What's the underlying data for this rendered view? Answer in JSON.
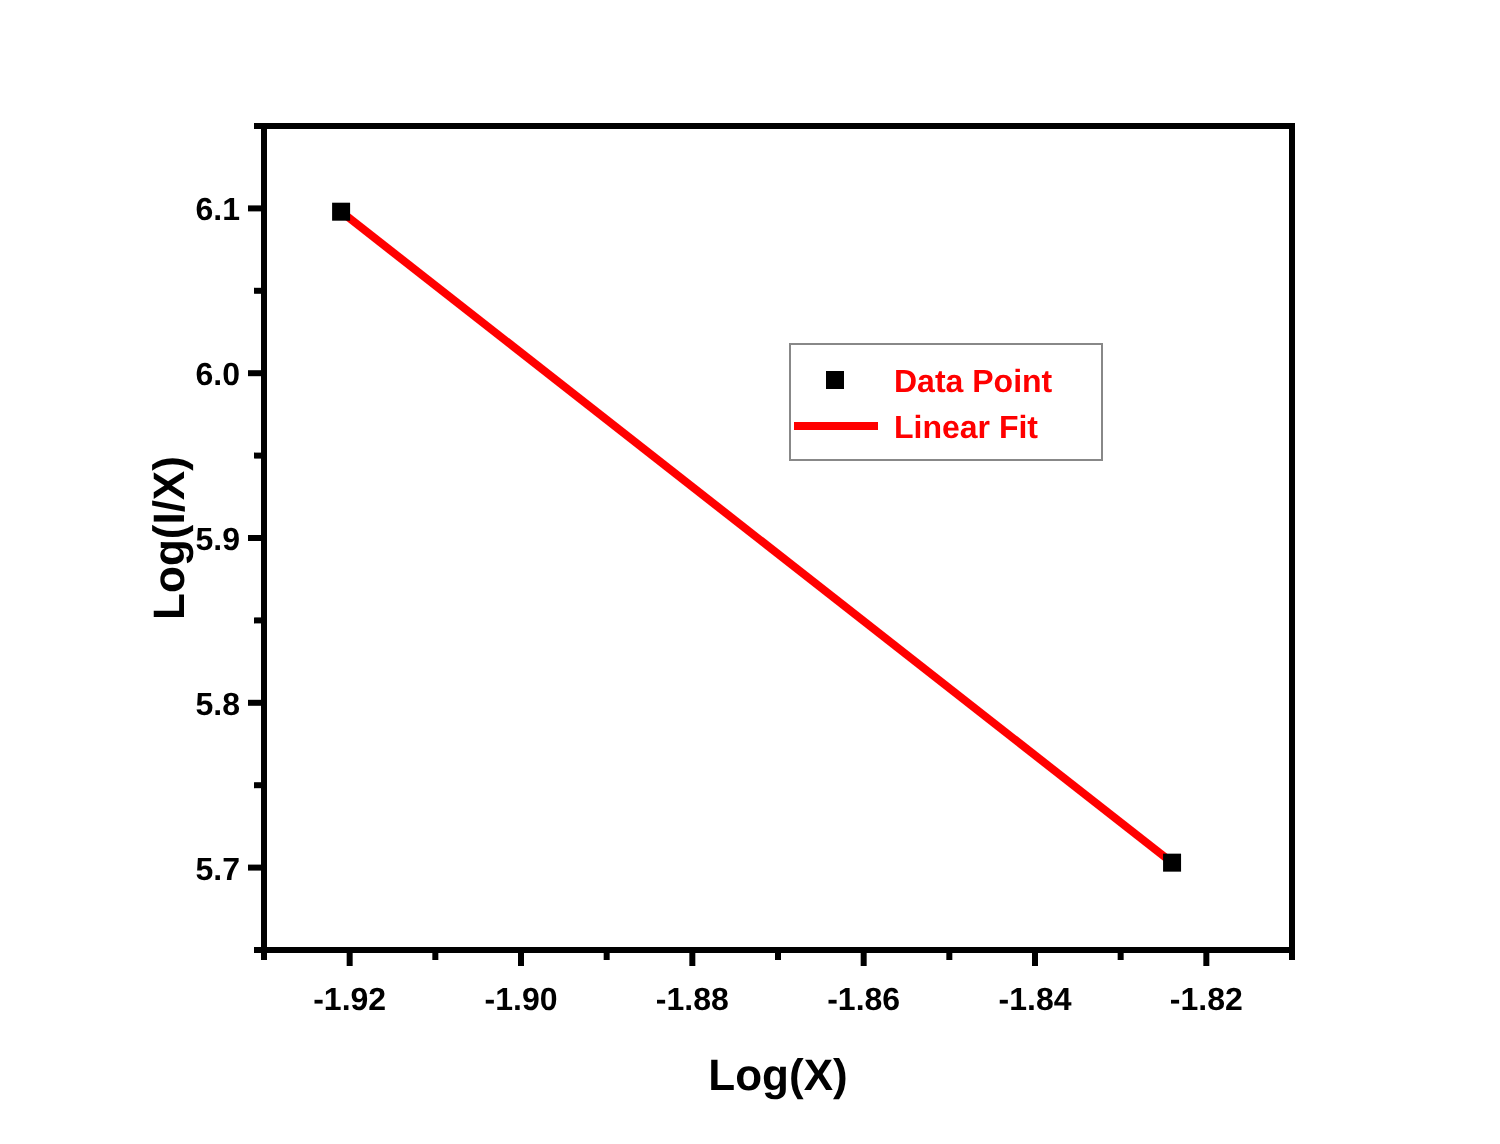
{
  "chart_data": {
    "type": "scatter",
    "xlabel": "Log(X)",
    "ylabel": "Log(I/X)",
    "xlim": [
      -1.93,
      -1.81
    ],
    "ylim": [
      5.65,
      6.15
    ],
    "xticks": [
      {
        "value": -1.92,
        "label": "-1.92"
      },
      {
        "value": -1.9,
        "label": "-1.90"
      },
      {
        "value": -1.88,
        "label": "-1.88"
      },
      {
        "value": -1.86,
        "label": "-1.86"
      },
      {
        "value": -1.84,
        "label": "-1.84"
      },
      {
        "value": -1.82,
        "label": "-1.82"
      }
    ],
    "yticks": [
      {
        "value": 5.7,
        "label": "5.7"
      },
      {
        "value": 5.8,
        "label": "5.8"
      },
      {
        "value": 5.9,
        "label": "5.9"
      },
      {
        "value": 6.0,
        "label": "6.0"
      },
      {
        "value": 6.1,
        "label": "6.1"
      }
    ],
    "legend": "top right",
    "grid": false,
    "x": [
      -1.921,
      -1.824
    ],
    "series": [
      {
        "name": "Data Point",
        "type": "scatter",
        "marker": "square",
        "color": "#000000",
        "values": [
          6.098,
          5.703
        ]
      },
      {
        "name": "Linear Fit",
        "type": "line",
        "color": "#ff0000",
        "line_style": "solid",
        "values": [
          6.098,
          5.703
        ]
      }
    ]
  }
}
